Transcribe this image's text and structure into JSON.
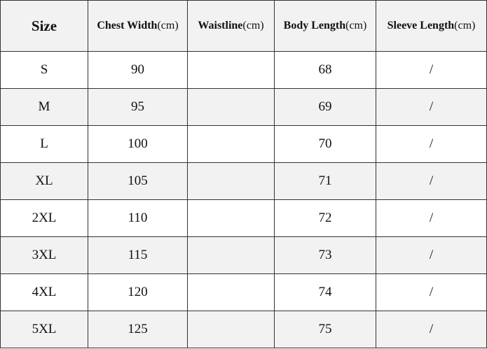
{
  "table": {
    "columns": [
      {
        "name": "Size"
      },
      {
        "name": "Chest Width",
        "unit": "(cm)"
      },
      {
        "name": "Waistline",
        "unit": "(cm)"
      },
      {
        "name": "Body Length",
        "unit": "(cm)"
      },
      {
        "name": "Sleeve Length",
        "unit": "(cm)"
      }
    ],
    "rows": [
      [
        "S",
        90,
        null,
        68,
        "/"
      ],
      [
        "M",
        95,
        null,
        69,
        "/"
      ],
      [
        "L",
        100,
        null,
        70,
        "/"
      ],
      [
        "XL",
        105,
        null,
        71,
        "/"
      ],
      [
        "2XL",
        110,
        null,
        72,
        "/"
      ],
      [
        "3XL",
        115,
        null,
        73,
        "/"
      ],
      [
        "4XL",
        120,
        null,
        74,
        "/"
      ],
      [
        "5XL",
        125,
        null,
        75,
        "/"
      ]
    ]
  }
}
